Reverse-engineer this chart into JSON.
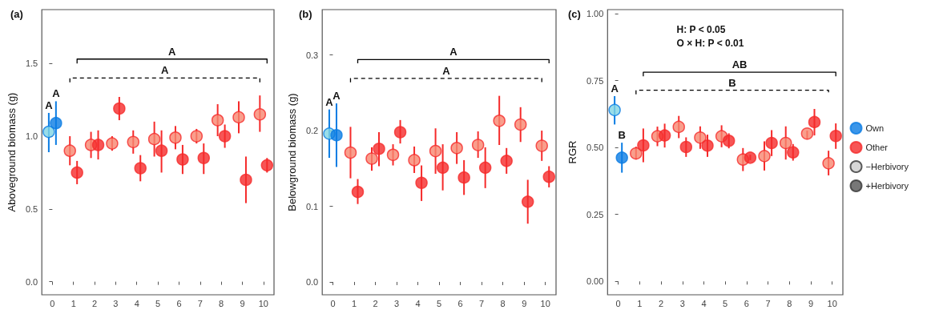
{
  "chart_data": [
    {
      "type": "scatter",
      "title": "(a)",
      "ylabel": "Aboveground biomass (g)",
      "xlim": [
        -0.5,
        10.5
      ],
      "xticks": [
        0,
        1,
        2,
        3,
        4,
        5,
        6,
        7,
        8,
        9,
        10
      ],
      "ylim": [
        -0.09,
        1.87
      ],
      "yticks": [
        {
          "value": 0,
          "label": "0.0"
        },
        {
          "value": 0.5,
          "label": "0.5"
        },
        {
          "value": 1,
          "label": "1.0"
        },
        {
          "value": 1.5,
          "label": "1.5"
        }
      ],
      "grid": false,
      "marker": "circle",
      "series": [
        {
          "color": "#0a7ce3",
          "x": [
            -0.17,
            0.17
          ],
          "values": [
            1.03,
            1.09
          ],
          "colors": [
            "#80d4e4",
            "#0a7ce3"
          ],
          "errors": [
            [
              0.89,
              1.16
            ],
            [
              0.94,
              1.24
            ]
          ]
        },
        {
          "color": "#f52a2a",
          "x": [
            0.83,
            1.17,
            1.83,
            2.17,
            2.83,
            3.17,
            3.83,
            4.17,
            4.83,
            5.17,
            5.83,
            6.17,
            6.83,
            7.17,
            7.83,
            8.17,
            8.83,
            9.17,
            9.83,
            10.17
          ],
          "values": [
            0.9,
            0.75,
            0.94,
            0.94,
            0.95,
            1.19,
            0.96,
            0.78,
            0.98,
            0.9,
            0.99,
            0.84,
            1.0,
            0.85,
            1.11,
            1.0,
            1.13,
            0.7,
            1.15,
            0.8
          ],
          "colors": [
            "#f7866f",
            "#f52a2a",
            "#f7866f",
            "#f52a2a",
            "#f7866f",
            "#f52a2a",
            "#f7866f",
            "#f52a2a",
            "#f7866f",
            "#f52a2a",
            "#f7866f",
            "#f52a2a",
            "#f7866f",
            "#f52a2a",
            "#f7866f",
            "#f52a2a",
            "#f7866f",
            "#f52a2a",
            "#f7866f",
            "#f52a2a"
          ],
          "errors": [
            [
              0.8,
              1.0
            ],
            [
              0.67,
              0.83
            ],
            [
              0.85,
              1.03
            ],
            [
              0.84,
              1.04
            ],
            [
              0.9,
              1.0
            ],
            [
              1.11,
              1.27
            ],
            [
              0.88,
              1.04
            ],
            [
              0.69,
              0.87
            ],
            [
              0.86,
              1.1
            ],
            [
              0.75,
              1.04
            ],
            [
              0.91,
              1.07
            ],
            [
              0.74,
              0.94
            ],
            [
              0.95,
              1.05
            ],
            [
              0.74,
              0.95
            ],
            [
              1.0,
              1.22
            ],
            [
              0.92,
              1.08
            ],
            [
              1.02,
              1.24
            ],
            [
              0.54,
              0.86
            ],
            [
              1.03,
              1.28
            ],
            [
              0.75,
              0.85
            ]
          ]
        },
        {
          "type": "line",
          "color": "#000000",
          "line_style": "solid",
          "marker": "none",
          "x": [
            1.17,
            1.17,
            10.17,
            10.17
          ],
          "values": [
            1.5,
            1.53,
            1.53,
            1.5
          ]
        },
        {
          "type": "line",
          "color": "#000000",
          "line_style": "dashed",
          "marker": "none",
          "x": [
            0.83,
            0.83,
            9.83,
            9.83
          ],
          "values": [
            1.37,
            1.4,
            1.4,
            1.37
          ]
        }
      ],
      "annotations": [
        {
          "text": "A",
          "x": -0.17,
          "y": 1.16
        },
        {
          "text": "A",
          "x": 0.17,
          "y": 1.24
        },
        {
          "text": "A",
          "x": 5.67,
          "y": 1.53
        },
        {
          "text": "A",
          "x": 5.33,
          "y": 1.4
        }
      ]
    },
    {
      "type": "scatter",
      "title": "(b)",
      "ylabel": "Belowground biomass (g)",
      "xlim": [
        -0.5,
        10.5
      ],
      "xticks": [
        0,
        1,
        2,
        3,
        4,
        5,
        6,
        7,
        8,
        9,
        10
      ],
      "ylim": [
        -0.017,
        0.36
      ],
      "yticks": [
        {
          "value": 0,
          "label": "0.0"
        },
        {
          "value": 0.1,
          "label": "0.1"
        },
        {
          "value": 0.2,
          "label": "0.2"
        },
        {
          "value": 0.3,
          "label": "0.3"
        }
      ],
      "grid": false,
      "marker": "circle",
      "series": [
        {
          "color": "#0a7ce3",
          "x": [
            -0.17,
            0.17
          ],
          "values": [
            0.196,
            0.194
          ],
          "colors": [
            "#80d4e4",
            "#0a7ce3"
          ],
          "errors": [
            [
              0.164,
              0.228
            ],
            [
              0.152,
              0.236
            ]
          ]
        },
        {
          "color": "#f52a2a",
          "x": [
            0.83,
            1.17,
            1.83,
            2.17,
            2.83,
            3.17,
            3.83,
            4.17,
            4.83,
            5.17,
            5.83,
            6.17,
            6.83,
            7.17,
            7.83,
            8.17,
            8.83,
            9.17,
            9.83,
            10.17
          ],
          "values": [
            0.171,
            0.119,
            0.163,
            0.176,
            0.168,
            0.198,
            0.161,
            0.131,
            0.173,
            0.151,
            0.177,
            0.138,
            0.181,
            0.151,
            0.213,
            0.16,
            0.208,
            0.106,
            0.18,
            0.139
          ],
          "colors": [
            "#f7866f",
            "#f52a2a",
            "#f7866f",
            "#f52a2a",
            "#f7866f",
            "#f52a2a",
            "#f7866f",
            "#f52a2a",
            "#f7866f",
            "#f52a2a",
            "#f7866f",
            "#f52a2a",
            "#f7866f",
            "#f52a2a",
            "#f7866f",
            "#f52a2a",
            "#f7866f",
            "#f52a2a",
            "#f7866f",
            "#f52a2a"
          ],
          "errors": [
            [
              0.137,
              0.205
            ],
            [
              0.103,
              0.136
            ],
            [
              0.147,
              0.178
            ],
            [
              0.153,
              0.198
            ],
            [
              0.154,
              0.182
            ],
            [
              0.183,
              0.214
            ],
            [
              0.144,
              0.179
            ],
            [
              0.107,
              0.154
            ],
            [
              0.143,
              0.203
            ],
            [
              0.121,
              0.182
            ],
            [
              0.156,
              0.198
            ],
            [
              0.115,
              0.161
            ],
            [
              0.164,
              0.199
            ],
            [
              0.124,
              0.178
            ],
            [
              0.181,
              0.246
            ],
            [
              0.143,
              0.177
            ],
            [
              0.185,
              0.231
            ],
            [
              0.077,
              0.135
            ],
            [
              0.16,
              0.2
            ],
            [
              0.125,
              0.153
            ]
          ]
        },
        {
          "type": "line",
          "color": "#000000",
          "line_style": "solid",
          "marker": "none",
          "x": [
            1.17,
            1.17,
            10.17,
            10.17
          ],
          "values": [
            0.289,
            0.294,
            0.294,
            0.289
          ]
        },
        {
          "type": "line",
          "color": "#000000",
          "line_style": "dashed",
          "marker": "none",
          "x": [
            0.83,
            0.83,
            9.83,
            9.83
          ],
          "values": [
            0.264,
            0.269,
            0.269,
            0.264
          ]
        }
      ],
      "annotations": [
        {
          "text": "A",
          "x": -0.17,
          "y": 0.228
        },
        {
          "text": "A",
          "x": 0.17,
          "y": 0.236
        },
        {
          "text": "A",
          "x": 5.67,
          "y": 0.294
        },
        {
          "text": "A",
          "x": 5.33,
          "y": 0.269
        }
      ]
    },
    {
      "type": "scatter",
      "title": "(c)",
      "ylabel": "RGR",
      "xlim": [
        -0.5,
        10.5
      ],
      "xticks": [
        0,
        1,
        2,
        3,
        4,
        5,
        6,
        7,
        8,
        9,
        10
      ],
      "ylim": [
        -0.05,
        1.015
      ],
      "yticks": [
        {
          "value": 0,
          "label": "0.00"
        },
        {
          "value": 0.25,
          "label": "0.25"
        },
        {
          "value": 0.5,
          "label": "0.50"
        },
        {
          "value": 0.75,
          "label": "0.75"
        },
        {
          "value": 1,
          "label": "1.00"
        }
      ],
      "grid": false,
      "marker": "circle",
      "legend": "right",
      "series": [
        {
          "name": "Own",
          "color": "#0a7ce3",
          "x": [
            -0.17,
            0.17
          ],
          "values": [
            0.64,
            0.462
          ],
          "colors": [
            "#80d4e4",
            "#0a7ce3"
          ],
          "errors": [
            [
              0.586,
              0.692
            ],
            [
              0.406,
              0.518
            ]
          ]
        },
        {
          "name": "Other",
          "color": "#f52a2a",
          "x": [
            0.83,
            1.17,
            1.83,
            2.17,
            2.83,
            3.17,
            3.83,
            4.17,
            4.83,
            5.17,
            5.83,
            6.17,
            6.83,
            7.17,
            7.83,
            8.17,
            8.83,
            9.17,
            9.83,
            10.17
          ],
          "values": [
            0.478,
            0.508,
            0.542,
            0.545,
            0.577,
            0.502,
            0.537,
            0.507,
            0.542,
            0.525,
            0.455,
            0.462,
            0.468,
            0.517,
            0.517,
            0.482,
            0.552,
            0.595,
            0.441,
            0.543
          ],
          "colors": [
            "#f7866f",
            "#f52a2a",
            "#f7866f",
            "#f52a2a",
            "#f7866f",
            "#f52a2a",
            "#f7866f",
            "#f52a2a",
            "#f7866f",
            "#f52a2a",
            "#f7866f",
            "#f52a2a",
            "#f7866f",
            "#f52a2a",
            "#f7866f",
            "#f52a2a",
            "#f7866f",
            "#f52a2a",
            "#f7866f",
            "#f52a2a"
          ],
          "errors": [
            [
              0.455,
              0.503
            ],
            [
              0.445,
              0.571
            ],
            [
              0.505,
              0.578
            ],
            [
              0.5,
              0.589
            ],
            [
              0.535,
              0.618
            ],
            [
              0.465,
              0.538
            ],
            [
              0.495,
              0.579
            ],
            [
              0.465,
              0.548
            ],
            [
              0.501,
              0.583
            ],
            [
              0.497,
              0.553
            ],
            [
              0.412,
              0.498
            ],
            [
              0.453,
              0.473
            ],
            [
              0.414,
              0.523
            ],
            [
              0.468,
              0.565
            ],
            [
              0.455,
              0.579
            ],
            [
              0.451,
              0.513
            ],
            [
              0.53,
              0.563
            ],
            [
              0.545,
              0.644
            ],
            [
              0.396,
              0.488
            ],
            [
              0.495,
              0.59
            ]
          ]
        },
        {
          "name": "−Herbivory",
          "color": "#cccccc"
        },
        {
          "name": "+Herbivory",
          "color": "#555555"
        },
        {
          "type": "line",
          "color": "#000000",
          "line_style": "solid",
          "marker": "none",
          "x": [
            1.17,
            1.17,
            10.17,
            10.17
          ],
          "values": [
            0.766,
            0.781,
            0.781,
            0.766
          ]
        },
        {
          "type": "line",
          "color": "#000000",
          "line_style": "dashed",
          "marker": "none",
          "x": [
            0.83,
            0.83,
            9.83,
            9.83
          ],
          "values": [
            0.699,
            0.714,
            0.714,
            0.699
          ]
        }
      ],
      "annotations": [
        "H: P < 0.05",
        "O × H: P < 0.01",
        {
          "text": "A",
          "x": -0.17,
          "y": 0.692
        },
        {
          "text": "B",
          "x": 0.17,
          "y": 0.518
        },
        {
          "text": "AB",
          "x": 5.67,
          "y": 0.781
        },
        {
          "text": "B",
          "x": 5.33,
          "y": 0.714
        }
      ]
    }
  ]
}
